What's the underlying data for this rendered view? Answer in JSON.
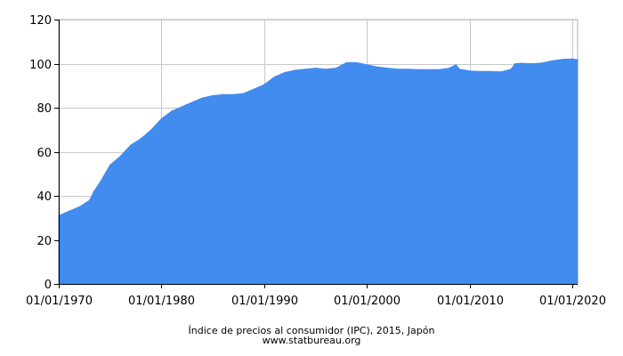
{
  "chart_data": {
    "type": "area",
    "title": "",
    "xlabel": "",
    "ylabel": "",
    "x_range": [
      "1970-01-01",
      "2020-07-01"
    ],
    "ylim": [
      0,
      120
    ],
    "y_ticks": [
      0,
      20,
      40,
      60,
      80,
      100,
      120
    ],
    "x_ticks": [
      "1970-01-01",
      "1980-01-01",
      "1990-01-01",
      "2000-01-01",
      "2010-01-01",
      "2020-01-01"
    ],
    "x_tick_labels": [
      "01/01/1970",
      "01/01/1980",
      "01/01/1990",
      "01/01/2000",
      "01/01/2010",
      "01/01/2020"
    ],
    "grid": true,
    "fill_color": "#428bef",
    "points": [
      [
        "1970-01-01",
        31
      ],
      [
        "1971-01-01",
        33
      ],
      [
        "1972-01-01",
        35
      ],
      [
        "1973-01-01",
        38
      ],
      [
        "1973-06-01",
        42
      ],
      [
        "1974-01-01",
        46
      ],
      [
        "1975-01-01",
        54
      ],
      [
        "1976-01-01",
        58
      ],
      [
        "1977-01-01",
        63
      ],
      [
        "1978-01-01",
        66
      ],
      [
        "1979-01-01",
        70
      ],
      [
        "1980-01-01",
        75
      ],
      [
        "1981-01-01",
        78.5
      ],
      [
        "1982-01-01",
        80.5
      ],
      [
        "1983-01-01",
        82.5
      ],
      [
        "1984-01-01",
        84.5
      ],
      [
        "1985-01-01",
        85.5
      ],
      [
        "1986-01-01",
        86
      ],
      [
        "1987-01-01",
        86
      ],
      [
        "1988-01-01",
        86.5
      ],
      [
        "1989-01-01",
        88.5
      ],
      [
        "1990-01-01",
        90.5
      ],
      [
        "1991-01-01",
        94
      ],
      [
        "1992-01-01",
        96
      ],
      [
        "1993-01-01",
        97
      ],
      [
        "1994-01-01",
        97.5
      ],
      [
        "1995-01-01",
        98
      ],
      [
        "1996-01-01",
        97.5
      ],
      [
        "1997-01-01",
        98
      ],
      [
        "1998-01-01",
        100.5
      ],
      [
        "1999-01-01",
        100.5
      ],
      [
        "2000-01-01",
        99.5
      ],
      [
        "2001-01-01",
        98.5
      ],
      [
        "2002-01-01",
        98
      ],
      [
        "2003-01-01",
        97.5
      ],
      [
        "2004-01-01",
        97.5
      ],
      [
        "2005-01-01",
        97.3
      ],
      [
        "2006-01-01",
        97.3
      ],
      [
        "2007-01-01",
        97.3
      ],
      [
        "2008-01-01",
        98
      ],
      [
        "2008-09-01",
        99.5
      ],
      [
        "2009-01-01",
        97.5
      ],
      [
        "2010-01-01",
        96.7
      ],
      [
        "2011-01-01",
        96.5
      ],
      [
        "2012-01-01",
        96.5
      ],
      [
        "2013-01-01",
        96.3
      ],
      [
        "2014-01-01",
        97.5
      ],
      [
        "2014-06-01",
        100
      ],
      [
        "2015-01-01",
        100.2
      ],
      [
        "2016-01-01",
        100
      ],
      [
        "2017-01-01",
        100.3
      ],
      [
        "2018-01-01",
        101.3
      ],
      [
        "2019-01-01",
        102
      ],
      [
        "2020-01-01",
        102.2
      ],
      [
        "2020-07-01",
        101.8
      ]
    ]
  },
  "caption": {
    "title": "Índice de precios al consumidor (IPC), 2015, Japón",
    "source": "www.statbureau.org"
  }
}
